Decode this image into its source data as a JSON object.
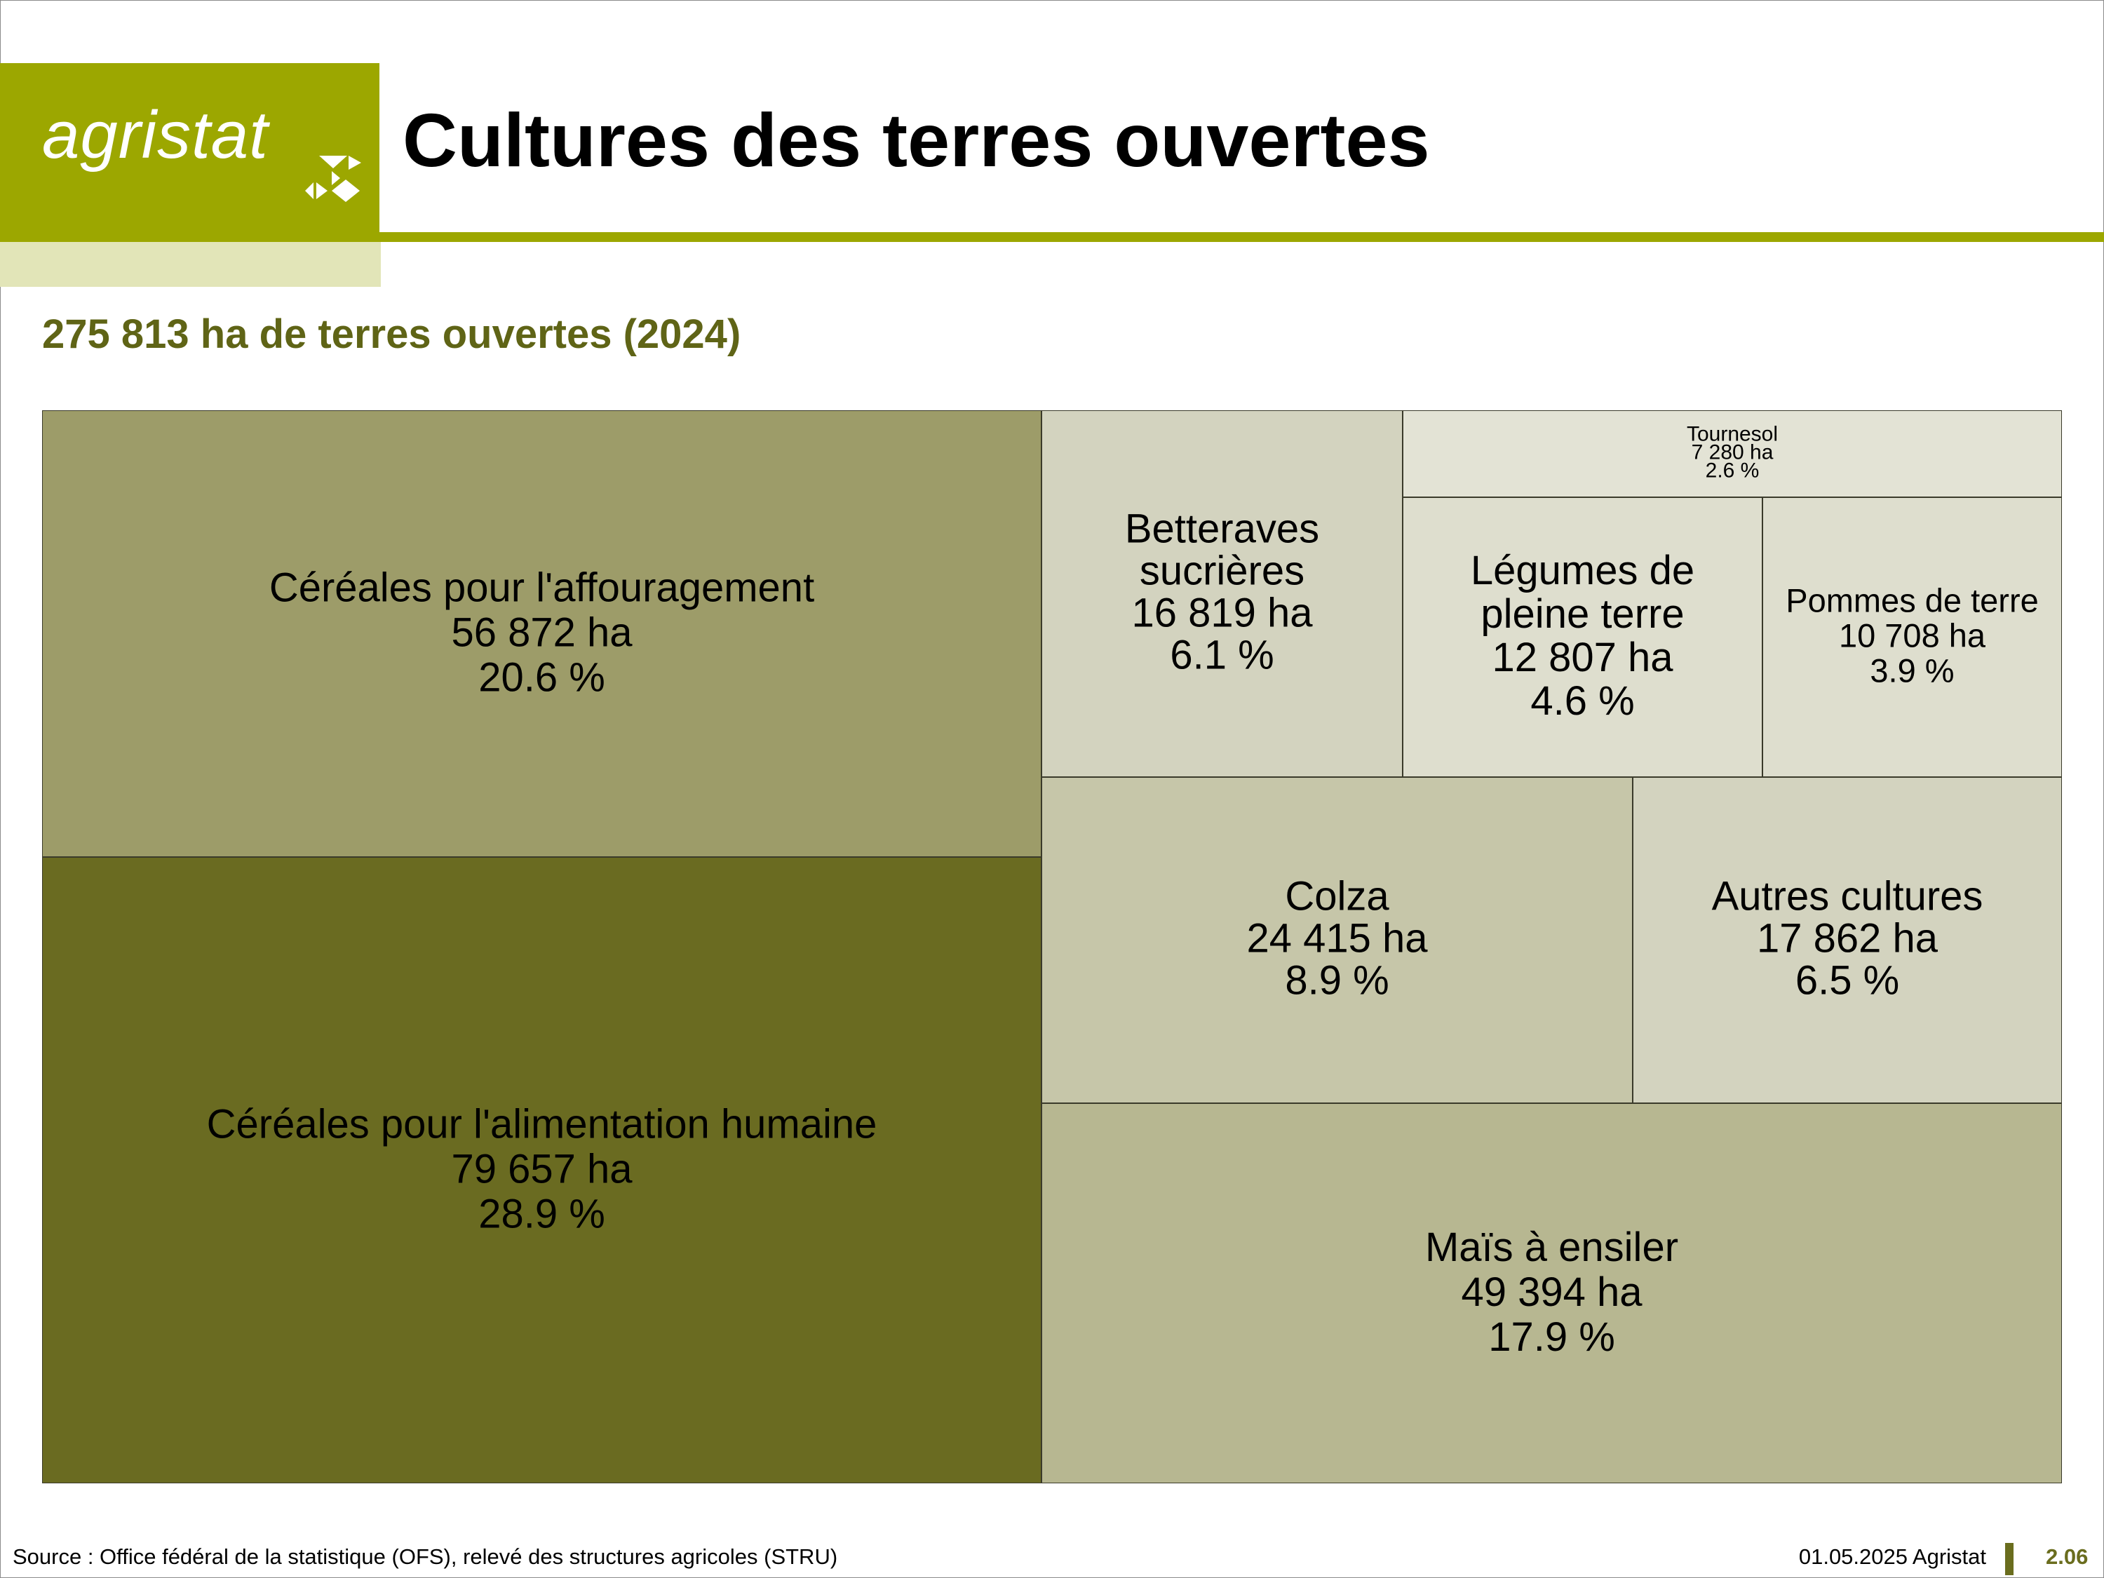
{
  "header": {
    "logo_text": "agristat",
    "title": "Cultures des terres ouvertes"
  },
  "subtitle": "275 813 ha de terres ouvertes (2024)",
  "footer": {
    "source": "Source : Office fédéral de la statistique (OFS), relevé des structures agricoles (STRU)",
    "date_org": "01.05.2025 Agristat",
    "page": "2.06"
  },
  "colors": {
    "brand_green": "#9ca700",
    "brand_light": "#e2e5b8",
    "subtitle": "#5f6416"
  },
  "chart_data": {
    "type": "treemap",
    "title": "275 813 ha de terres ouvertes (2024)",
    "unit": "ha",
    "total": 275813,
    "items": [
      {
        "label": "Céréales pour l'alimentation humaine",
        "value": 79657,
        "value_text": "79 657 ha",
        "percent_text": "28.9 %",
        "color": "#6a6b21"
      },
      {
        "label": "Céréales pour l'affouragement",
        "value": 56872,
        "value_text": "56 872 ha",
        "percent_text": "20.6 %",
        "color": "#9d9c69"
      },
      {
        "label": "Maïs à ensiler",
        "value": 49394,
        "value_text": "49 394 ha",
        "percent_text": "17.9 %",
        "color": "#b7b791"
      },
      {
        "label": "Colza",
        "value": 24415,
        "value_text": "24 415 ha",
        "percent_text": "8.9 %",
        "color": "#c6c6a9"
      },
      {
        "label": "Autres cultures",
        "value": 17862,
        "value_text": "17 862 ha",
        "percent_text": "6.5 %",
        "color": "#d3d3bf"
      },
      {
        "label": "Betteraves sucrières",
        "value": 16819,
        "value_text": "16 819 ha",
        "percent_text": "6.1 %",
        "color": "#d3d3bf"
      },
      {
        "label": "Légumes de pleine terre",
        "value": 12807,
        "value_text": "12 807 ha",
        "percent_text": "4.6 %",
        "color": "#dedece"
      },
      {
        "label": "Pommes de terre",
        "value": 10708,
        "value_text": "10 708 ha",
        "percent_text": "3.9 %",
        "color": "#dedece"
      },
      {
        "label": "Tournesol",
        "value": 7280,
        "value_text": "7 280 ha",
        "percent_text": "2.6 %",
        "color": "#e3e3d5"
      }
    ]
  }
}
